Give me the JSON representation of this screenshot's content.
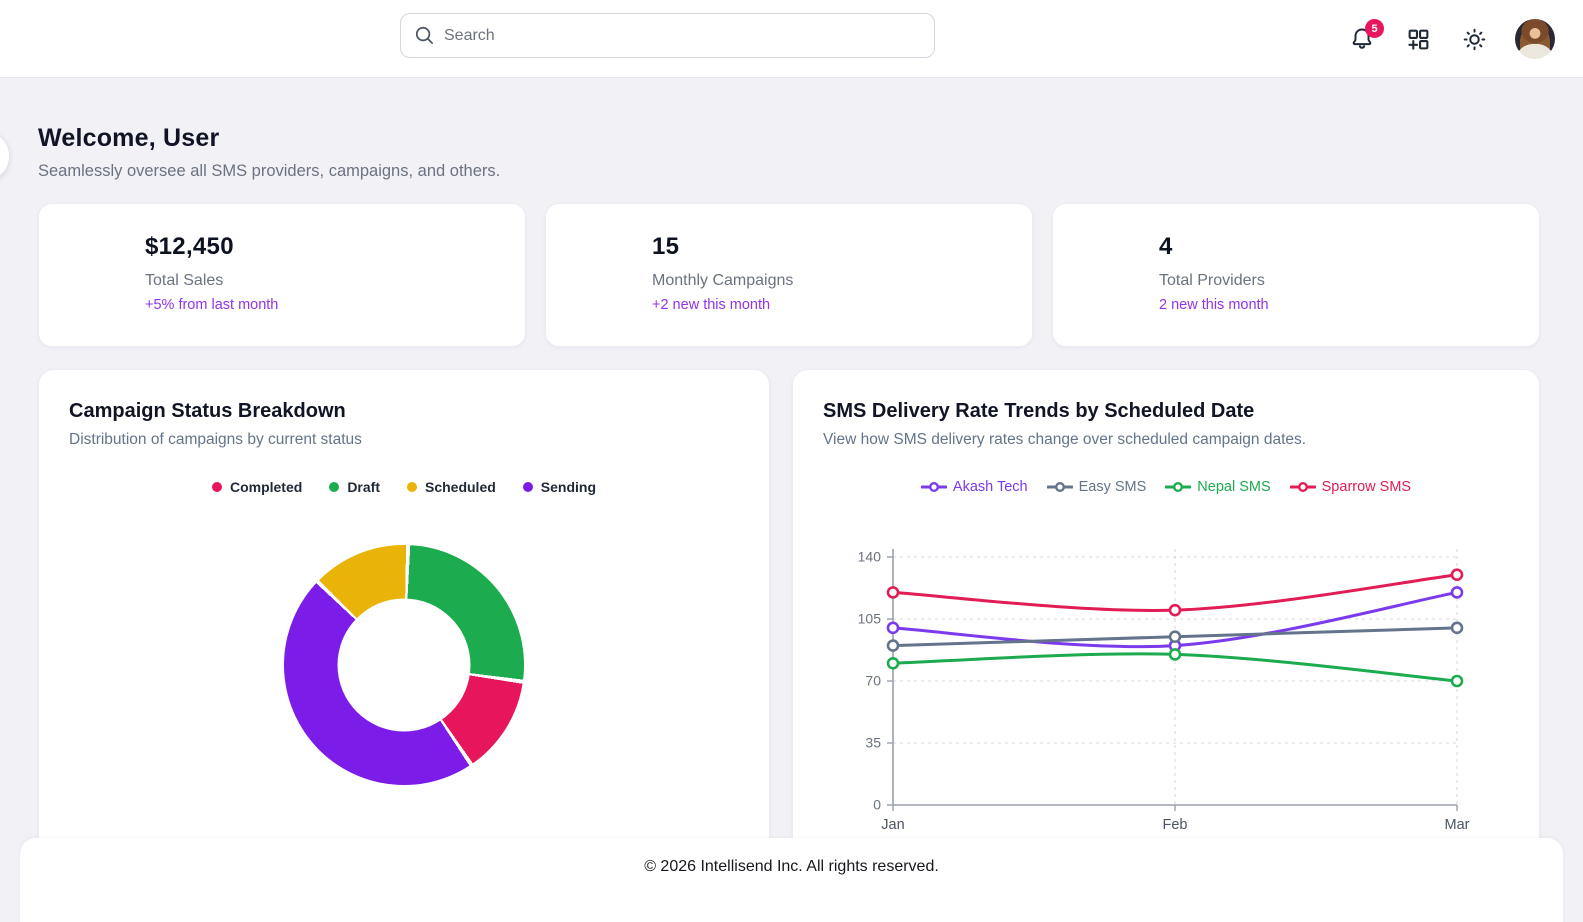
{
  "header": {
    "search": {
      "placeholder": "Search",
      "icon": "search-icon"
    },
    "notifications": {
      "icon": "bell-icon",
      "badge_count": "5",
      "badge_color": "#e8175d"
    },
    "apps": {
      "icon": "grid-plus-icon"
    },
    "theme": {
      "icon": "sun-icon"
    },
    "avatar": {
      "icon": "user-avatar"
    }
  },
  "welcome": {
    "title": "Welcome, User",
    "subtitle": "Seamlessly oversee all SMS providers, campaigns, and others."
  },
  "stats": [
    {
      "value": "$12,450",
      "label": "Total Sales",
      "delta": "+5% from last month"
    },
    {
      "value": "15",
      "label": "Monthly Campaigns",
      "delta": "+2 new this month"
    },
    {
      "value": "4",
      "label": "Total Providers",
      "delta": "2 new this month"
    }
  ],
  "accent_color": "#9333ea",
  "panels": {
    "donut": {
      "title": "Campaign Status Breakdown",
      "subtitle": "Distribution of campaigns by current status"
    },
    "line": {
      "title": "SMS Delivery Rate Trends by Scheduled Date",
      "subtitle": "View how SMS delivery rates change over scheduled campaign dates."
    }
  },
  "chart_data": [
    {
      "type": "pie",
      "variant": "donut",
      "title": "Campaign Status Breakdown",
      "labels": [
        "Completed",
        "Draft",
        "Scheduled",
        "Sending"
      ],
      "values": [
        2,
        4,
        2,
        7
      ],
      "colors": [
        "#e6155c",
        "#1cab4e",
        "#eab308",
        "#7c1ce8"
      ],
      "clockwise_order_from_top": [
        "Draft",
        "Completed",
        "Sending",
        "Scheduled"
      ],
      "rotation_deg": 2,
      "gap_deg": 2,
      "cutout_ratio": 0.55,
      "legend_position": "top"
    },
    {
      "type": "line",
      "title": "SMS Delivery Rate Trends by Scheduled Date",
      "x": [
        "Jan",
        "Feb",
        "Mar"
      ],
      "series": [
        {
          "name": "Akash Tech",
          "values": [
            100,
            90,
            120
          ],
          "color": "#7c3aed"
        },
        {
          "name": "Easy SMS",
          "values": [
            90,
            95,
            100
          ],
          "color": "#64748b"
        },
        {
          "name": "Nepal SMS",
          "values": [
            80,
            85,
            70
          ],
          "color": "#1cab4e"
        },
        {
          "name": "Sparrow SMS",
          "values": [
            120,
            110,
            130
          ],
          "color": "#e11d55"
        }
      ],
      "ylim": [
        0,
        140
      ],
      "yticks": [
        0,
        35,
        70,
        105,
        140
      ],
      "grid": "dashed",
      "smooth": true,
      "point_style": "hollow-circle",
      "legend_position": "top"
    }
  ],
  "footer": {
    "text": "© 2026 Intellisend Inc. All rights reserved."
  }
}
